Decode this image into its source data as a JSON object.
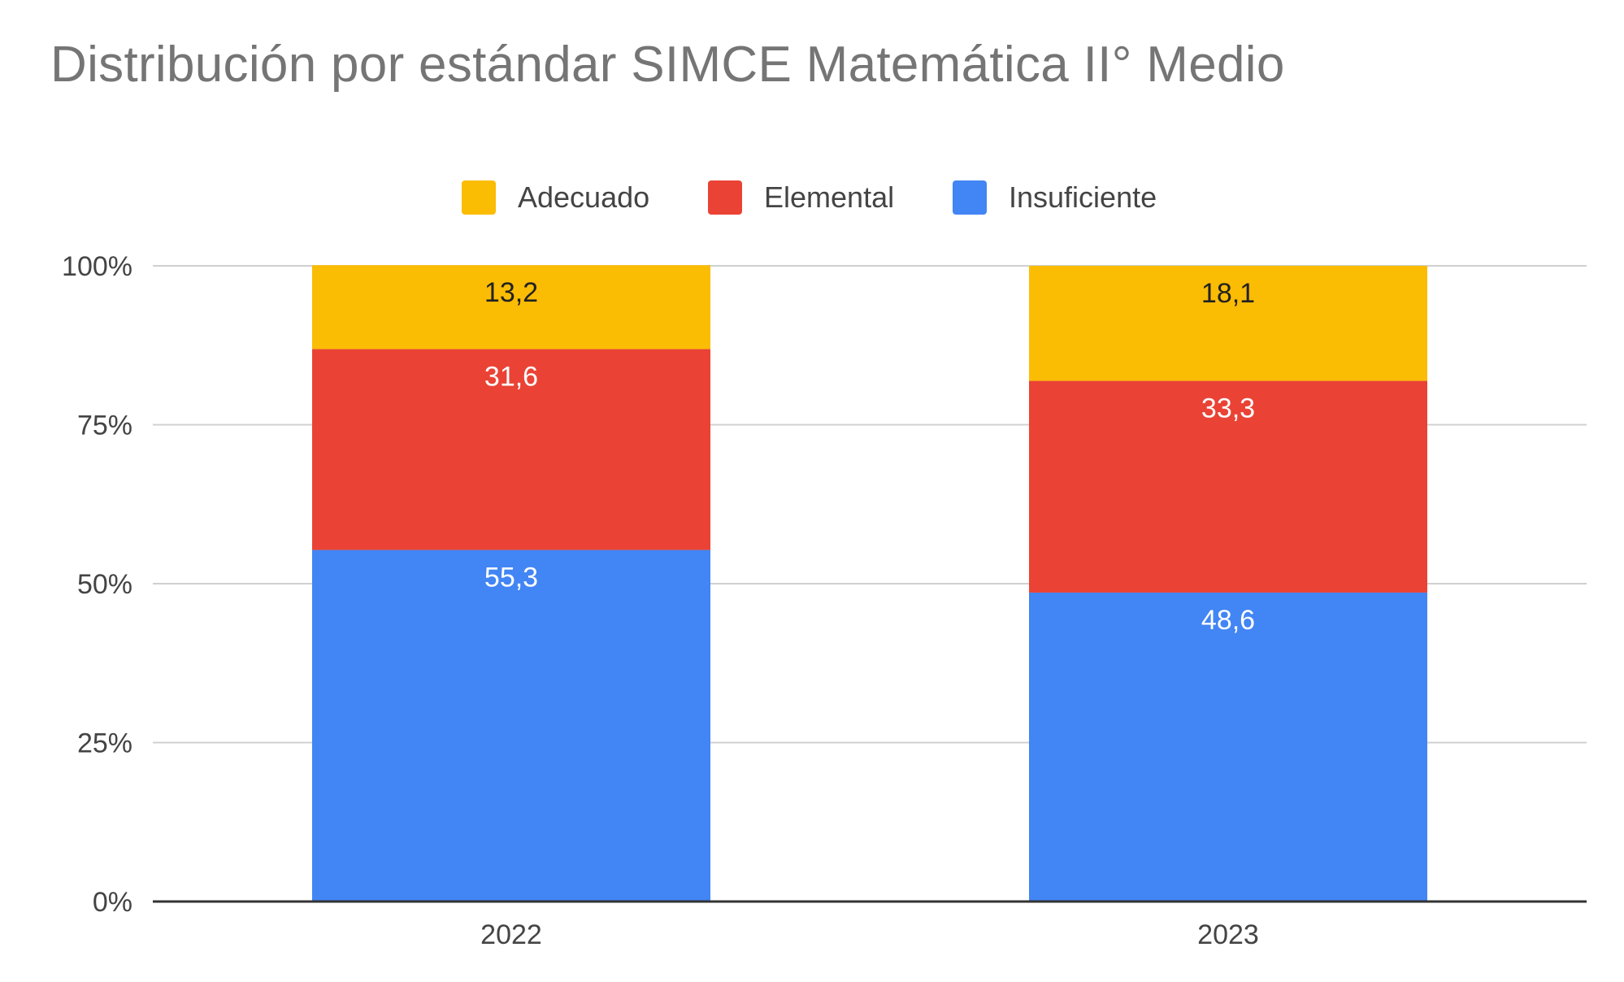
{
  "chart_data": {
    "type": "bar",
    "stacked": true,
    "title": "Distribución por estándar SIMCE Matemática II° Medio",
    "categories": [
      "2022",
      "2023"
    ],
    "series": [
      {
        "name": "Insuficiente",
        "values": [
          55.3,
          48.6
        ],
        "labels": [
          "55,3",
          "48,6"
        ],
        "color": "#4285f4",
        "label_color": "#ffffff"
      },
      {
        "name": "Elemental",
        "values": [
          31.6,
          33.3
        ],
        "labels": [
          "31,6",
          "33,3"
        ],
        "color": "#ea4335",
        "label_color": "#ffffff"
      },
      {
        "name": "Adecuado",
        "values": [
          13.2,
          18.1
        ],
        "labels": [
          "13,2",
          "18,1"
        ],
        "color": "#fbbc04",
        "label_color": "#222222"
      }
    ],
    "legend_order": [
      "Adecuado",
      "Elemental",
      "Insuficiente"
    ],
    "legend_position": "top",
    "y_ticks": [
      "0%",
      "25%",
      "50%",
      "75%",
      "100%"
    ],
    "ylim": [
      0,
      100
    ],
    "grid": true,
    "xlabel": "",
    "ylabel": ""
  }
}
